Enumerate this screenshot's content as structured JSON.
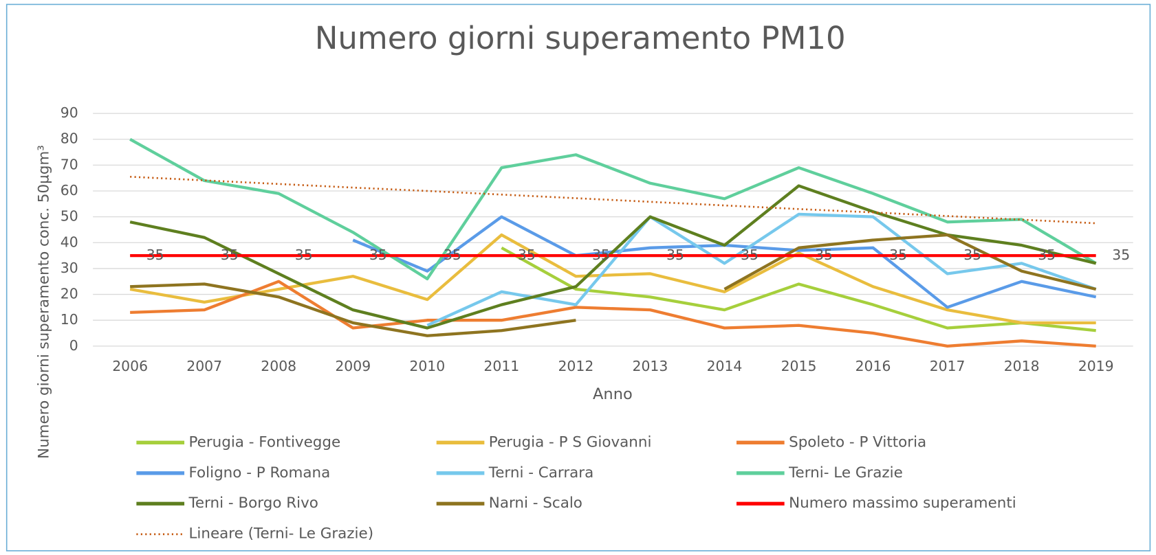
{
  "chart_data": {
    "type": "line",
    "title": "Numero giorni superamento PM10",
    "x_label": "Anno",
    "y_label": "Numero giorni superamento conc. 50µgm³",
    "categories": [
      "2006",
      "2007",
      "2008",
      "2009",
      "2010",
      "2011",
      "2012",
      "2013",
      "2014",
      "2015",
      "2016",
      "2017",
      "2018",
      "2019"
    ],
    "ylim": [
      0,
      90
    ],
    "yticks": [
      0,
      10,
      20,
      30,
      40,
      50,
      60,
      70,
      80,
      90
    ],
    "grid": true,
    "legend": "bottom",
    "series": [
      {
        "name": "Perugia - Fontivegge",
        "color": "#a6cf3c",
        "values": [
          null,
          null,
          null,
          null,
          null,
          38,
          22,
          19,
          14,
          24,
          16,
          7,
          9,
          6
        ]
      },
      {
        "name": "Perugia - P S Giovanni",
        "color": "#e9bd3e",
        "values": [
          22,
          17,
          22,
          27,
          18,
          43,
          27,
          28,
          21,
          36,
          23,
          14,
          9,
          9
        ]
      },
      {
        "name": "Spoleto - P Vittoria",
        "color": "#ee7d31",
        "values": [
          13,
          14,
          25,
          7,
          10,
          10,
          15,
          14,
          7,
          8,
          5,
          0,
          2,
          0
        ]
      },
      {
        "name": "Foligno - P Romana",
        "color": "#5a9be8",
        "values": [
          null,
          null,
          null,
          41,
          29,
          50,
          35,
          38,
          39,
          37,
          38,
          15,
          25,
          19
        ]
      },
      {
        "name": "Terni - Carrara",
        "color": "#76c8ec",
        "values": [
          null,
          null,
          null,
          null,
          8,
          21,
          16,
          50,
          32,
          51,
          50,
          28,
          32,
          22
        ]
      },
      {
        "name": "Terni- Le Grazie",
        "color": "#5fcf9c",
        "values": [
          80,
          64,
          59,
          44,
          26,
          69,
          74,
          63,
          57,
          69,
          59,
          48,
          49,
          32
        ]
      },
      {
        "name": "Terni  - Borgo Rivo",
        "color": "#5e7f1f",
        "values": [
          48,
          42,
          28,
          14,
          7,
          16,
          23,
          50,
          39,
          62,
          52,
          43,
          39,
          32
        ]
      },
      {
        "name": "Narni - Scalo",
        "color": "#8e7420",
        "values": [
          23,
          24,
          19,
          9,
          4,
          6,
          10,
          null,
          22,
          38,
          41,
          43,
          29,
          22
        ]
      },
      {
        "name": "Numero massimo superamenti",
        "color": "#ff0000",
        "data_labels": true,
        "values": [
          35,
          35,
          35,
          35,
          35,
          35,
          35,
          35,
          35,
          35,
          35,
          35,
          35,
          35
        ]
      },
      {
        "name": "Lineare (Terni- Le Grazie)",
        "color": "#c55a11",
        "dash": "dotted",
        "values": [
          65.5,
          64.1,
          62.7,
          61.3,
          60.0,
          58.6,
          57.2,
          55.8,
          54.4,
          53.0,
          51.7,
          50.3,
          48.9,
          47.5
        ]
      }
    ]
  }
}
